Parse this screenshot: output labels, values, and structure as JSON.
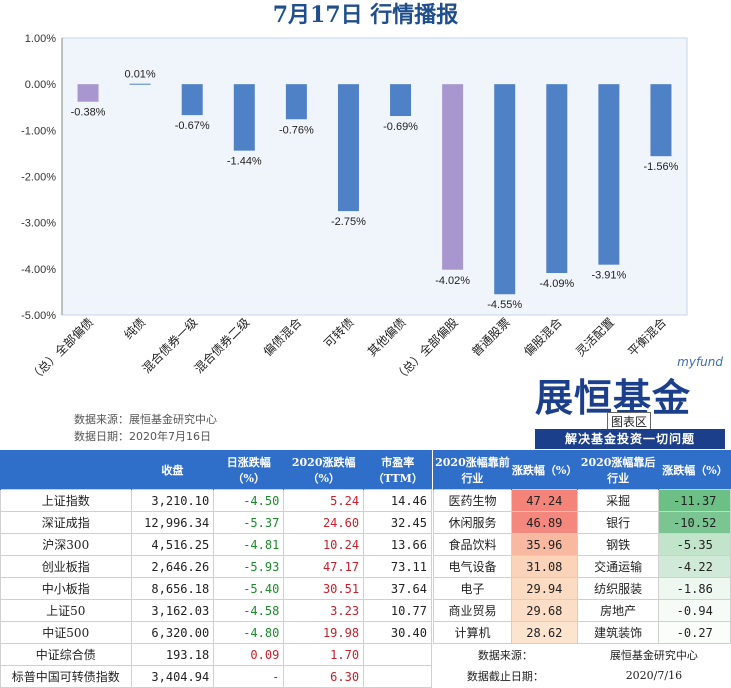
{
  "title": "7月17日   行情播报",
  "notes": {
    "source": "数据来源：展恒基金研究中心",
    "date": "数据日期：2020年7月16日"
  },
  "logo": {
    "myfund": "myfund",
    "name": "展恒基金",
    "tag": "图表区",
    "slogan": "解决基金投资一切问题"
  },
  "colors": {
    "bar_blue": "#4f81c7",
    "bar_purple": "#a897cf",
    "plot_bg": "#f0f5fb",
    "header_blue": "#2f6fc9"
  },
  "chart_data": {
    "type": "bar",
    "categories": [
      "（总）全部偏债",
      "纯债",
      "混合债券一级",
      "混合债券二级",
      "偏债混合",
      "可转债",
      "其他偏债",
      "（总）全部偏股",
      "普通股票",
      "偏股混合",
      "灵活配置",
      "平衡混合"
    ],
    "values": [
      -0.38,
      0.01,
      -0.67,
      -1.44,
      -0.76,
      -2.75,
      -0.69,
      -4.02,
      -4.55,
      -4.09,
      -3.91,
      -1.56
    ],
    "data_labels": [
      "-0.38%",
      "0.01%",
      "-0.67%",
      "-1.44%",
      "-0.76%",
      "-2.75%",
      "-0.69%",
      "-4.02%",
      "-4.55%",
      "-4.09%",
      "-3.91%",
      "-1.56%"
    ],
    "highlight": [
      true,
      false,
      false,
      false,
      false,
      false,
      false,
      true,
      false,
      false,
      false,
      false
    ],
    "yticks": [
      "1.00%",
      "0.00%",
      "-1.00%",
      "-2.00%",
      "-3.00%",
      "-4.00%",
      "-5.00%"
    ],
    "ylim": [
      -5,
      1
    ],
    "title": "",
    "xlabel": "",
    "ylabel": "",
    "grid": false
  },
  "left_table": {
    "headers": [
      "",
      "收盘",
      "日涨跌幅（%）",
      "2020涨跌幅（%）",
      "市盈率（TTM）"
    ],
    "rows": [
      {
        "name": "上证指数",
        "close": "3,210.10",
        "day": "-4.50",
        "year": "5.24",
        "pe": "14.46",
        "day_color": "green"
      },
      {
        "name": "深证成指",
        "close": "12,996.34",
        "day": "-5.37",
        "year": "24.60",
        "pe": "32.45",
        "day_color": "green"
      },
      {
        "name": "沪深300",
        "close": "4,516.25",
        "day": "-4.81",
        "year": "10.24",
        "pe": "13.66",
        "day_color": "green"
      },
      {
        "name": "创业板指",
        "close": "2,646.26",
        "day": "-5.93",
        "year": "47.17",
        "pe": "73.11",
        "day_color": "green"
      },
      {
        "name": "中小板指",
        "close": "8,656.18",
        "day": "-5.40",
        "year": "30.51",
        "pe": "37.64",
        "day_color": "green"
      },
      {
        "name": "上证50",
        "close": "3,162.03",
        "day": "-4.58",
        "year": "3.23",
        "pe": "10.77",
        "day_color": "green"
      },
      {
        "name": "中证500",
        "close": "6,320.00",
        "day": "-4.80",
        "year": "19.98",
        "pe": "30.40",
        "day_color": "green"
      },
      {
        "name": "中证综合债",
        "close": "193.18",
        "day": "0.09",
        "year": "1.70",
        "pe": "",
        "day_color": "red"
      },
      {
        "name": "标普中国可转债指数",
        "close": "3,404.94",
        "day": "-",
        "year": "6.30",
        "pe": "",
        "day_color": "red"
      }
    ]
  },
  "right_table": {
    "headers": [
      "2020涨幅靠前行业",
      "涨跌幅（%）",
      "2020涨幅靠后行业",
      "涨跌幅（%）"
    ],
    "rows": [
      {
        "top": "医药生物",
        "top_pct": "47.24",
        "top_bg": "#f4837a",
        "bottom": "采掘",
        "bottom_pct": "-11.37",
        "bottom_bg": "#6cbf85"
      },
      {
        "top": "休闲服务",
        "top_pct": "46.89",
        "top_bg": "#f5887e",
        "bottom": "银行",
        "bottom_pct": "-10.52",
        "bottom_bg": "#7ac591"
      },
      {
        "top": "食品饮料",
        "top_pct": "35.96",
        "top_bg": "#f8b9a0",
        "bottom": "钢铁",
        "bottom_pct": "-5.35",
        "bottom_bg": "#c2e4cb"
      },
      {
        "top": "电气设备",
        "top_pct": "31.08",
        "top_bg": "#fad3b8",
        "bottom": "交通运输",
        "bottom_pct": "-4.22",
        "bottom_bg": "#d1ead7"
      },
      {
        "top": "电子",
        "top_pct": "29.94",
        "top_bg": "#fbdcc2",
        "bottom": "纺织服装",
        "bottom_pct": "-1.86",
        "bottom_bg": "#eef7f0"
      },
      {
        "top": "商业贸易",
        "top_pct": "29.68",
        "top_bg": "#fbdec5",
        "bottom": "房地产",
        "bottom_pct": "-0.94",
        "bottom_bg": "#f7fbf8"
      },
      {
        "top": "计算机",
        "top_pct": "28.62",
        "top_bg": "#fce4ce",
        "bottom": "建筑装饰",
        "bottom_pct": "-0.27",
        "bottom_bg": "#fbfdfb"
      }
    ],
    "footer_source_label": "数据来源：",
    "footer_source_value": "展恒基金研究中心",
    "footer_date_label": "数据截止日期：",
    "footer_date_value": "2020/7/16"
  }
}
